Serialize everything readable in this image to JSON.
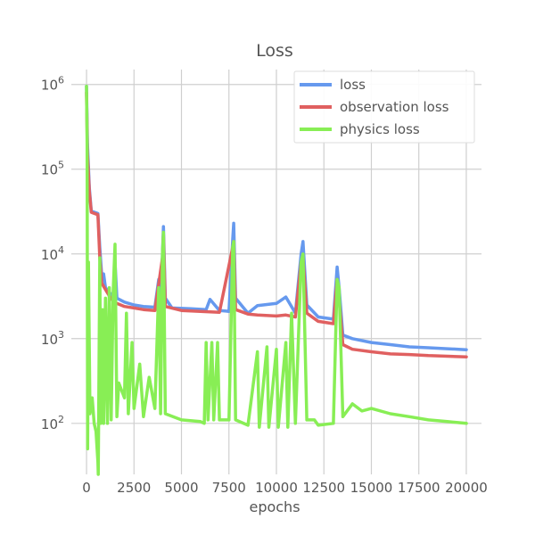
{
  "chart_data": {
    "type": "line",
    "title": "Loss",
    "xlabel": "epochs",
    "ylabel": "",
    "xlim": [
      -800,
      20800
    ],
    "ylim": [
      25,
      1500000
    ],
    "yscale": "log",
    "grid": true,
    "legend_position": "top-right",
    "xticks": [
      0,
      2500,
      5000,
      7500,
      10000,
      12500,
      15000,
      17500,
      20000
    ],
    "xtick_labels": [
      "0",
      "2500",
      "5000",
      "7500",
      "10000",
      "12500",
      "15000",
      "17500",
      "20000"
    ],
    "yticks": [
      100,
      1000,
      10000,
      100000,
      1000000
    ],
    "ytick_exponents": [
      "2",
      "3",
      "4",
      "5",
      "6"
    ],
    "ytick_base": "10",
    "series": [
      {
        "name": "loss",
        "color": "#6699ee",
        "points": [
          [
            0,
            950000
          ],
          [
            50,
            200000
          ],
          [
            150,
            60000
          ],
          [
            250,
            32000
          ],
          [
            600,
            30000
          ],
          [
            700,
            12000
          ],
          [
            800,
            5500
          ],
          [
            900,
            5800
          ],
          [
            1000,
            4000
          ],
          [
            1200,
            3500
          ],
          [
            1400,
            3200
          ],
          [
            1500,
            8000
          ],
          [
            1600,
            3000
          ],
          [
            2000,
            2700
          ],
          [
            2500,
            2500
          ],
          [
            3000,
            2400
          ],
          [
            3600,
            2350
          ],
          [
            3800,
            5000
          ],
          [
            3900,
            2400
          ],
          [
            4000,
            10000
          ],
          [
            4050,
            21000
          ],
          [
            4150,
            3000
          ],
          [
            4500,
            2300
          ],
          [
            5500,
            2250
          ],
          [
            6300,
            2200
          ],
          [
            6500,
            2900
          ],
          [
            7000,
            2150
          ],
          [
            7500,
            2100
          ],
          [
            7700,
            15000
          ],
          [
            7750,
            23000
          ],
          [
            7850,
            3000
          ],
          [
            8500,
            2000
          ],
          [
            9000,
            2450
          ],
          [
            10000,
            2600
          ],
          [
            10500,
            3100
          ],
          [
            11000,
            2000
          ],
          [
            11300,
            10000
          ],
          [
            11400,
            14000
          ],
          [
            11600,
            2500
          ],
          [
            12200,
            1800
          ],
          [
            13000,
            1700
          ],
          [
            13200,
            7000
          ],
          [
            13300,
            4000
          ],
          [
            13500,
            1100
          ],
          [
            14000,
            1000
          ],
          [
            15000,
            900
          ],
          [
            16000,
            850
          ],
          [
            17000,
            800
          ],
          [
            18000,
            780
          ],
          [
            19000,
            760
          ],
          [
            20000,
            740
          ]
        ]
      },
      {
        "name": "observation loss",
        "color": "#e06060",
        "points": [
          [
            0,
            800000
          ],
          [
            50,
            150000
          ],
          [
            150,
            55000
          ],
          [
            250,
            31000
          ],
          [
            600,
            29000
          ],
          [
            700,
            9000
          ],
          [
            800,
            4500
          ],
          [
            1000,
            3800
          ],
          [
            1200,
            3200
          ],
          [
            1400,
            2800
          ],
          [
            1600,
            2600
          ],
          [
            2000,
            2400
          ],
          [
            2500,
            2300
          ],
          [
            3000,
            2200
          ],
          [
            3600,
            2150
          ],
          [
            4000,
            9000
          ],
          [
            4050,
            17000
          ],
          [
            4150,
            2400
          ],
          [
            5000,
            2150
          ],
          [
            6000,
            2100
          ],
          [
            7000,
            2050
          ],
          [
            7700,
            12000
          ],
          [
            7750,
            14000
          ],
          [
            7850,
            2200
          ],
          [
            8500,
            1950
          ],
          [
            9000,
            1900
          ],
          [
            10000,
            1850
          ],
          [
            10500,
            1900
          ],
          [
            11000,
            1800
          ],
          [
            11300,
            8000
          ],
          [
            11400,
            9000
          ],
          [
            11600,
            2000
          ],
          [
            12200,
            1600
          ],
          [
            13000,
            1500
          ],
          [
            13200,
            5000
          ],
          [
            13300,
            3000
          ],
          [
            13500,
            850
          ],
          [
            14000,
            750
          ],
          [
            15000,
            700
          ],
          [
            16000,
            660
          ],
          [
            17000,
            650
          ],
          [
            18000,
            630
          ],
          [
            19000,
            620
          ],
          [
            20000,
            610
          ]
        ]
      },
      {
        "name": "physics loss",
        "color": "#88ee55",
        "points": [
          [
            0,
            950000
          ],
          [
            30,
            200000
          ],
          [
            60,
            50
          ],
          [
            100,
            8000
          ],
          [
            180,
            130
          ],
          [
            300,
            200
          ],
          [
            400,
            100
          ],
          [
            500,
            80
          ],
          [
            600,
            35
          ],
          [
            620,
            25
          ],
          [
            700,
            9000
          ],
          [
            750,
            100
          ],
          [
            850,
            2200
          ],
          [
            900,
            100
          ],
          [
            1000,
            3000
          ],
          [
            1100,
            100
          ],
          [
            1200,
            4000
          ],
          [
            1300,
            110
          ],
          [
            1400,
            3500
          ],
          [
            1500,
            13000
          ],
          [
            1600,
            120
          ],
          [
            1700,
            300
          ],
          [
            2000,
            200
          ],
          [
            2100,
            2000
          ],
          [
            2200,
            130
          ],
          [
            2400,
            900
          ],
          [
            2500,
            150
          ],
          [
            2800,
            500
          ],
          [
            3000,
            120
          ],
          [
            3300,
            350
          ],
          [
            3600,
            150
          ],
          [
            3800,
            4000
          ],
          [
            3900,
            130
          ],
          [
            4000,
            10000
          ],
          [
            4050,
            18000
          ],
          [
            4150,
            130
          ],
          [
            5000,
            110
          ],
          [
            6000,
            105
          ],
          [
            6200,
            100
          ],
          [
            6300,
            900
          ],
          [
            6400,
            110
          ],
          [
            6600,
            900
          ],
          [
            6700,
            110
          ],
          [
            6900,
            900
          ],
          [
            7000,
            110
          ],
          [
            7500,
            110
          ],
          [
            7700,
            12000
          ],
          [
            7750,
            14000
          ],
          [
            7850,
            110
          ],
          [
            8500,
            95
          ],
          [
            9000,
            700
          ],
          [
            9100,
            90
          ],
          [
            9500,
            800
          ],
          [
            9600,
            90
          ],
          [
            10000,
            750
          ],
          [
            10100,
            90
          ],
          [
            10500,
            900
          ],
          [
            10600,
            90
          ],
          [
            10800,
            2000
          ],
          [
            11000,
            100
          ],
          [
            11300,
            8000
          ],
          [
            11400,
            10000
          ],
          [
            11600,
            110
          ],
          [
            12000,
            110
          ],
          [
            12200,
            95
          ],
          [
            13000,
            100
          ],
          [
            13200,
            5000
          ],
          [
            13300,
            4000
          ],
          [
            13500,
            120
          ],
          [
            14000,
            170
          ],
          [
            14500,
            140
          ],
          [
            15000,
            150
          ],
          [
            16000,
            130
          ],
          [
            17000,
            120
          ],
          [
            18000,
            110
          ],
          [
            19000,
            105
          ],
          [
            20000,
            100
          ]
        ]
      }
    ]
  }
}
